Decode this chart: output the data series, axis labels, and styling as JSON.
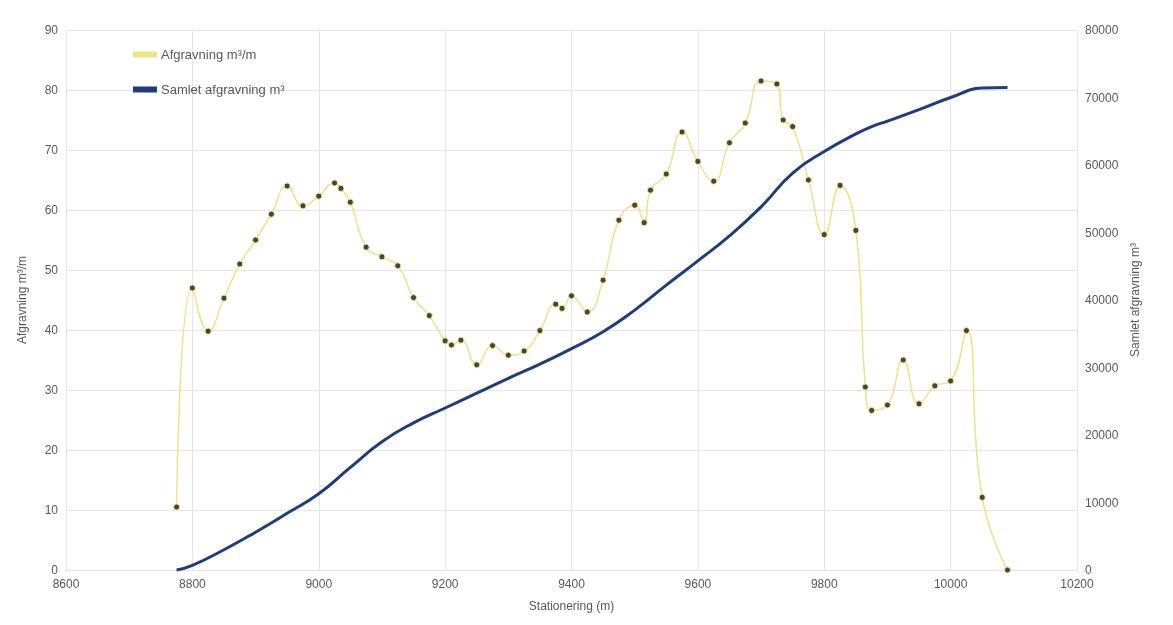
{
  "chart_data": {
    "type": "line",
    "xlabel": "Stationering (m)",
    "ylabel": "Afgravning m³/m",
    "y2label": "Samlet afgravning m³",
    "xlim": [
      8600,
      10200
    ],
    "xticks": [
      8600,
      8800,
      9000,
      9200,
      9400,
      9600,
      9800,
      10000,
      10200
    ],
    "ylim": [
      0,
      90
    ],
    "yticks": [
      0,
      10,
      20,
      30,
      40,
      50,
      60,
      70,
      80,
      90
    ],
    "y2lim": [
      0,
      80000
    ],
    "y2ticks": [
      0,
      10000,
      20000,
      30000,
      40000,
      50000,
      60000,
      70000,
      80000
    ],
    "grid": true,
    "legend": "top left",
    "series": [
      {
        "name": "Afgravning m³/m",
        "color": "#ebe38a",
        "marker": "circle",
        "x": [
          8775,
          8800,
          8825,
          8850,
          8875,
          8900,
          8925,
          8950,
          8975,
          9000,
          9025,
          9035,
          9050,
          9075,
          9100,
          9125,
          9150,
          9175,
          9200,
          9210,
          9225,
          9250,
          9275,
          9300,
          9325,
          9350,
          9375,
          9385,
          9400,
          9425,
          9450,
          9475,
          9500,
          9515,
          9525,
          9550,
          9575,
          9600,
          9625,
          9650,
          9675,
          9700,
          9725,
          9735,
          9750,
          9775,
          9800,
          9825,
          9850,
          9865,
          9875,
          9900,
          9925,
          9950,
          9975,
          10000,
          10025,
          10050,
          10090
        ],
        "values": [
          10.5,
          47,
          39.8,
          45.3,
          51,
          55,
          59.3,
          64,
          60.7,
          62.3,
          64.5,
          63.6,
          61.3,
          53.8,
          52.2,
          50.7,
          45.4,
          42.4,
          38.2,
          37.5,
          38.3,
          34.2,
          37.4,
          35.8,
          36.5,
          39.9,
          44.3,
          43.6,
          45.7,
          43,
          48.3,
          58.3,
          60.8,
          57.9,
          63.3,
          66,
          73,
          68.1,
          64.8,
          71.2,
          74.5,
          81.5,
          81,
          75,
          73.9,
          65,
          55.9,
          64.1,
          56.6,
          30.5,
          26.6,
          27.5,
          35,
          27.7,
          30.7,
          31.5,
          39.9,
          12.1,
          0
        ]
      },
      {
        "name": "Samlet afgravning m³",
        "color": "#1f3d7c",
        "marker": "none",
        "axis": "y2",
        "x": [
          8775,
          8800,
          8850,
          8900,
          8950,
          9000,
          9050,
          9100,
          9150,
          9200,
          9250,
          9300,
          9350,
          9400,
          9450,
          9500,
          9550,
          9600,
          9650,
          9700,
          9750,
          9800,
          9850,
          9875,
          9900,
          9950,
          10000,
          10050,
          10090
        ],
        "values": [
          0,
          700,
          3000,
          5600,
          8400,
          11300,
          15200,
          19000,
          21800,
          24000,
          26200,
          28400,
          30500,
          32800,
          35300,
          38500,
          42200,
          45800,
          49500,
          53800,
          58800,
          62000,
          64600,
          65700,
          66500,
          68200,
          70000,
          71400,
          71500
        ]
      }
    ]
  }
}
